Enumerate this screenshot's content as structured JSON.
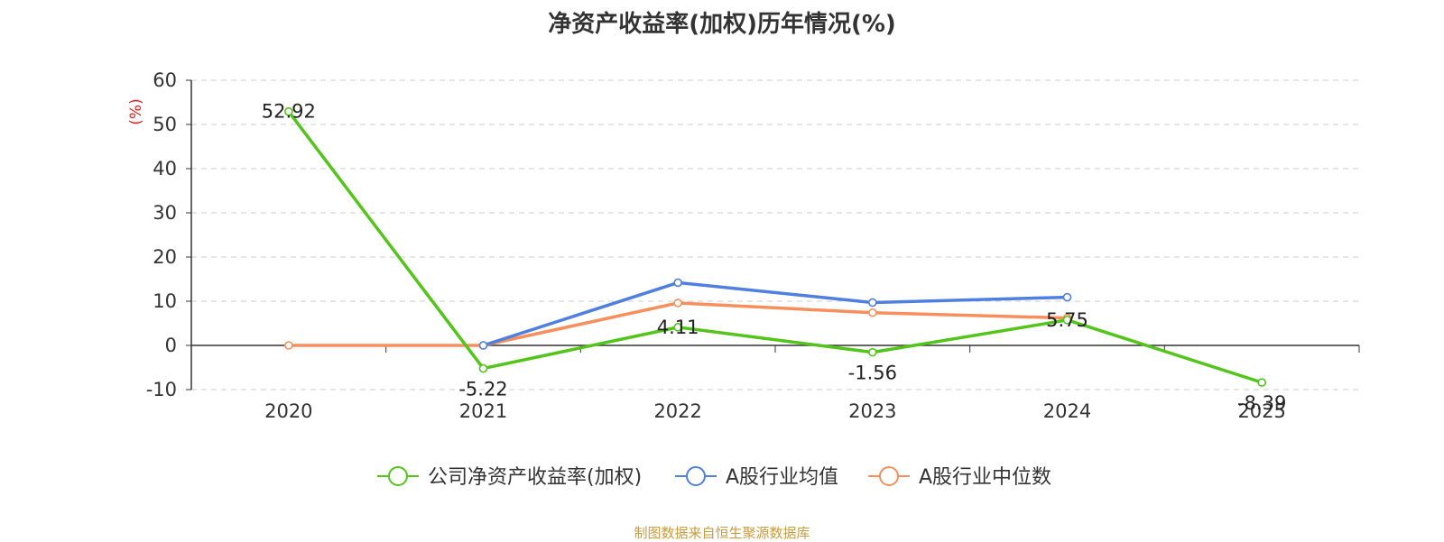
{
  "colors": {
    "company": "#52c41a",
    "industry_avg": "#4f7fdf",
    "industry_median": "#f88e5b",
    "axis": "#333333",
    "grid": "#cccccc",
    "unit": "#e02020",
    "source": "#c89b3c"
  },
  "source_note": "制图数据来自恒生聚源数据库",
  "chart_data": {
    "type": "line",
    "title": "净资产收益率(加权)历年情况(%)",
    "ylabel": "(%)",
    "xlabel": "",
    "categories": [
      "2020",
      "2021",
      "2022",
      "2023",
      "2024",
      "2025"
    ],
    "ylim": [
      -10,
      60
    ],
    "yticks": [
      -10,
      0,
      10,
      20,
      30,
      40,
      50,
      60
    ],
    "grid": true,
    "legend_position": "bottom",
    "series": [
      {
        "name": "公司净资产收益率(加权)",
        "key": "company",
        "values": [
          52.92,
          -5.22,
          4.11,
          -1.56,
          5.75,
          -8.39
        ],
        "data_labels": [
          "52.92",
          "-5.22",
          "4.11",
          "-1.56",
          "5.75",
          "-8.39"
        ]
      },
      {
        "name": "A股行业均值",
        "key": "industry_avg",
        "values": [
          null,
          0,
          14.2,
          9.7,
          10.9,
          null
        ]
      },
      {
        "name": "A股行业中位数",
        "key": "industry_median",
        "values": [
          0,
          0,
          9.6,
          7.4,
          6.2,
          null
        ]
      }
    ]
  }
}
